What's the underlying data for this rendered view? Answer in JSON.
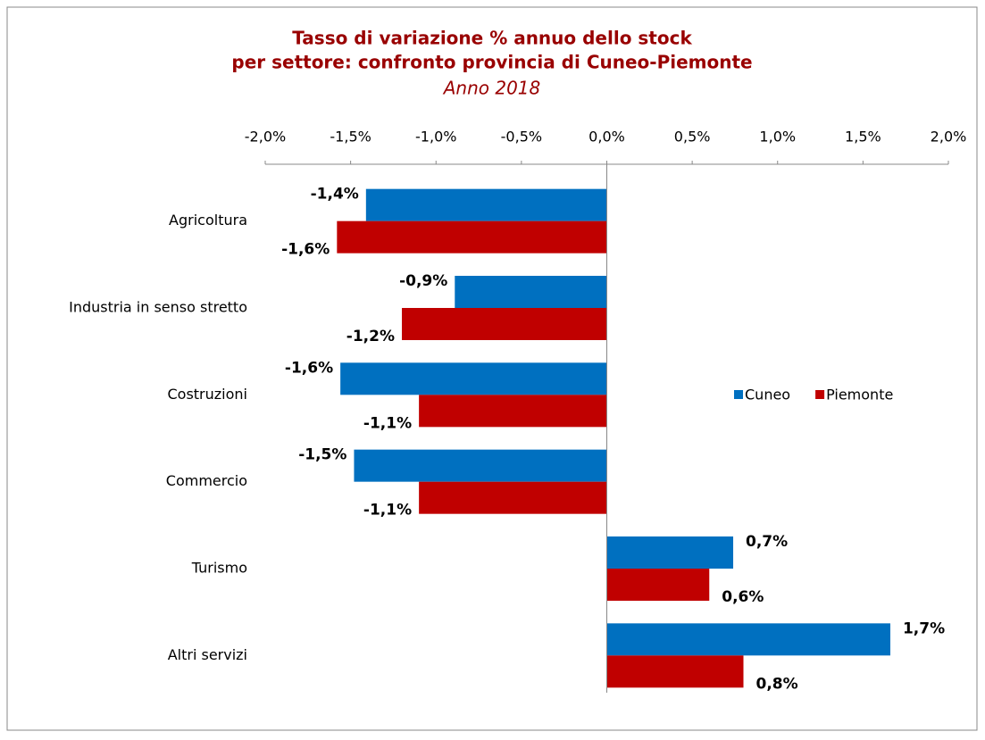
{
  "chart_data": {
    "type": "hbar",
    "title": [
      "Tasso di variazione % annuo dello stock",
      "per settore: confronto provincia di Cuneo-Piemonte"
    ],
    "subtitle": "Anno 2018",
    "categories": [
      "Agricoltura",
      "Industria in senso stretto",
      "Costruzioni",
      "Commercio",
      "Turismo",
      "Altri servizi"
    ],
    "series": [
      {
        "name": "Cuneo",
        "color": "#0070c0",
        "values": [
          -1.41,
          -0.89,
          -1.56,
          -1.48,
          0.74,
          1.66
        ],
        "value_labels": [
          "-1,4%",
          "-0,9%",
          "-1,6%",
          "-1,5%",
          "0,7%",
          "1,7%"
        ]
      },
      {
        "name": "Piemonte",
        "color": "#c00000",
        "values": [
          -1.58,
          -1.2,
          -1.1,
          -1.1,
          0.6,
          0.8
        ],
        "value_labels": [
          "-1,6%",
          "-1,2%",
          "-1,1%",
          "-1,1%",
          "0,6%",
          "0,8%"
        ]
      }
    ],
    "xlim": [
      -2,
      2
    ],
    "xticks": [
      {
        "value": -2,
        "label": "-2,0%"
      },
      {
        "value": -1.5,
        "label": "-1,5%"
      },
      {
        "value": -1,
        "label": "-1,0%"
      },
      {
        "value": -0.5,
        "label": "-0,5%"
      },
      {
        "value": 0,
        "label": "0,0%"
      },
      {
        "value": 0.5,
        "label": "0,5%"
      },
      {
        "value": 1,
        "label": "1,0%"
      },
      {
        "value": 1.5,
        "label": "1,5%"
      },
      {
        "value": 2,
        "label": "2,0%"
      }
    ],
    "legend": "right"
  }
}
